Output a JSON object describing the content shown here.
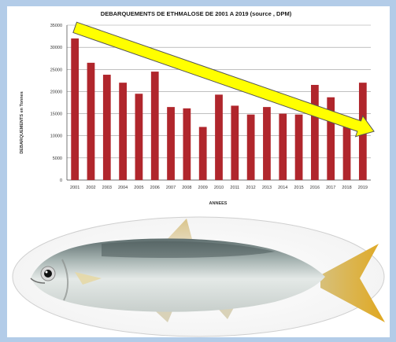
{
  "chart_data": {
    "type": "bar",
    "title": "DEBARQUEMENTS DE ETHMALOSE DE 2001 A 2019 (source , DPM)",
    "xlabel": "ANNEES",
    "ylabel": "DEBARQUEMENTS en Tonnes",
    "ylim": [
      0,
      35000
    ],
    "yticks": [
      "0",
      "5000",
      "10000",
      "15000",
      "20000",
      "25000",
      "30000",
      "35000"
    ],
    "categories": [
      "2001",
      "2002",
      "2003",
      "2004",
      "2005",
      "2006",
      "2007",
      "2008",
      "2009",
      "2010",
      "2011",
      "2012",
      "2013",
      "2014",
      "2015",
      "2016",
      "2017",
      "2018",
      "2019"
    ],
    "values": [
      32000,
      26500,
      23800,
      22000,
      19500,
      24500,
      16500,
      16200,
      12000,
      19300,
      16800,
      14800,
      16500,
      15000,
      14800,
      21500,
      18700,
      12500,
      22000
    ],
    "grid": true,
    "bar_color": "#b0262c",
    "trend_arrow": {
      "from": [
        2001,
        34500
      ],
      "to": [
        2019,
        11000
      ],
      "color": "#ffff00"
    }
  },
  "photo": {
    "subject": "fish-photo"
  }
}
